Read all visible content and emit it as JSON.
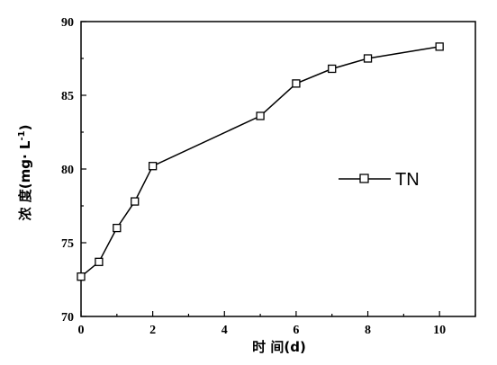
{
  "chart_data": {
    "type": "line",
    "x": [
      0,
      0.5,
      1,
      1.5,
      2,
      5,
      6,
      7,
      8,
      10
    ],
    "series": [
      {
        "name": "TN",
        "values": [
          72.7,
          73.7,
          76.0,
          77.8,
          80.2,
          83.6,
          85.8,
          86.8,
          87.5,
          88.3
        ]
      }
    ],
    "xlabel": "时 间(d)",
    "ylabel_main": "浓 度(mg· L",
    "ylabel_sup": "-1",
    "ylabel_tail": ")",
    "xlim": [
      0,
      11
    ],
    "ylim": [
      70,
      90
    ],
    "xticks": [
      0,
      2,
      4,
      6,
      8,
      10
    ],
    "yticks": [
      70,
      75,
      80,
      85,
      90
    ],
    "grid": false,
    "legend_position": "center-right",
    "marker": "open-square",
    "line_color": "#000000"
  }
}
